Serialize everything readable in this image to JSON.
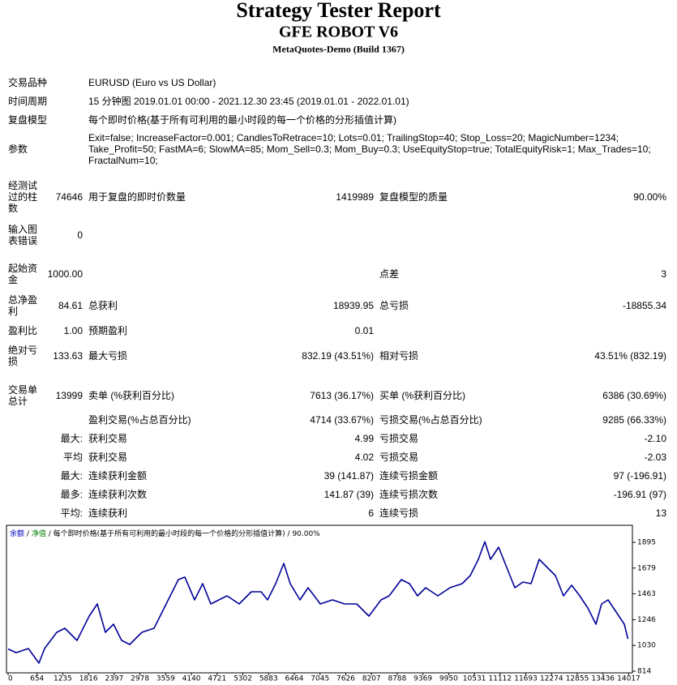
{
  "header": {
    "title": "Strategy Tester Report",
    "subtitle": "GFE ROBOT V6",
    "build": "MetaQuotes-Demo (Build 1367)"
  },
  "info": [
    {
      "label": "交易品种",
      "value": "EURUSD (Euro vs US Dollar)"
    },
    {
      "label": "时间周期",
      "value": "15 分钟图 2019.01.01 00:00 - 2021.12.30 23:45 (2019.01.01 - 2022.01.01)"
    },
    {
      "label": "复盘模型",
      "value": "每个即时价格(基于所有可利用的最小时段的每一个价格的分形插值计算)"
    },
    {
      "label": "参数",
      "value": "Exit=false; IncreaseFactor=0.001; CandlesToRetrace=10; Lots=0.01; TrailingStop=40; Stop_Loss=20; MagicNumber=1234; Take_Profit=50; FastMA=6; SlowMA=85; Mom_Sell=0.3; Mom_Buy=0.3; UseEquityStop=true; TotalEquityRisk=1; Max_Trades=10; FractalNum=10;"
    }
  ],
  "stats": [
    {
      "label": "经测试过的柱数",
      "value": "74646",
      "label2": "用于复盘的即时价数量",
      "value2": "1419989",
      "label3": "复盘模型的质量",
      "value3": "90.00%"
    },
    {
      "label": "输入图表错误",
      "value": "0"
    },
    {
      "label": "起始资金",
      "value": "1000.00",
      "label3": "点差",
      "value3": "3"
    },
    {
      "label": "总净盈利",
      "value": "84.61",
      "label2": "总获利",
      "value2": "18939.95",
      "label3": "总亏损",
      "value3": "-18855.34"
    },
    {
      "label": "盈利比",
      "value": "1.00",
      "label2": "预期盈利",
      "value2": "0.01"
    },
    {
      "label": "绝对亏损",
      "value": "133.63",
      "label2": "最大亏损",
      "value2": "832.19 (43.51%)",
      "label3": "相对亏损",
      "value3": "43.51% (832.19)"
    },
    {
      "label": "交易单总计",
      "value": "13999",
      "label2": "卖单 (%获利百分比)",
      "value2": "7613 (36.17%)",
      "label3": "买单 (%获利百分比)",
      "value3": "6386 (30.69%)"
    },
    {
      "label2": "盈利交易(%占总百分比)",
      "value2": "4714 (33.67%)",
      "label3": "亏损交易(%占总百分比)",
      "value3": "9285 (66.33%)"
    },
    {
      "prefix": "最大:",
      "label2": "获利交易",
      "value2": "4.99",
      "label3": "亏损交易",
      "value3": "-2.10"
    },
    {
      "prefix": "平均",
      "label2": "获利交易",
      "value2": "4.02",
      "label3": "亏损交易",
      "value3": "-2.03"
    },
    {
      "prefix": "最大:",
      "label2": "连续获利金额",
      "value2": "39 (141.87)",
      "label3": "连续亏损金额",
      "value3": "97 (-196.91)"
    },
    {
      "prefix": "最多:",
      "label2": "连续获利次数",
      "value2": "141.87 (39)",
      "label3": "连续亏损次数",
      "value3": "-196.91 (97)"
    },
    {
      "prefix": "平均:",
      "label2": "连续获利",
      "value2": "6",
      "label3": "连续亏损",
      "value3": "13"
    }
  ],
  "chart_data": {
    "type": "line",
    "legend_balance": "余额",
    "balance_color": "#0000c0",
    "legend_equity": "净值",
    "equity_color": "#008000",
    "separator": "/",
    "model": "每个即时价格(基于所有可利用的最小时段的每一个价格的分形插值计算)",
    "quality": "90.00%",
    "x": [
      0,
      183,
      458,
      696,
      824,
      1099,
      1282,
      1556,
      1831,
      2014,
      2197,
      2380,
      2563,
      2747,
      3021,
      3296,
      3479,
      3662,
      3845,
      3992,
      4212,
      4395,
      4578,
      4761,
      4944,
      5219,
      5493,
      5713,
      5860,
      6043,
      6226,
      6373,
      6592,
      6775,
      7050,
      7325,
      7599,
      7874,
      8149,
      8423,
      8606,
      8881,
      9064,
      9248,
      9431,
      9705,
      9980,
      10255,
      10438,
      10621,
      10767,
      10896,
      11079,
      11262,
      11445,
      11628,
      11811,
      11994,
      12177,
      12360,
      12543,
      12726,
      12909,
      13093,
      13276,
      13404,
      13550,
      13733,
      13916,
      13999
    ],
    "series": [
      {
        "name": "余额",
        "color": "#000099",
        "values": [
          1000,
          970,
          1004,
          882,
          1004,
          1140,
          1174,
          1072,
          1276,
          1378,
          1140,
          1208,
          1072,
          1038,
          1140,
          1174,
          1310,
          1446,
          1582,
          1603,
          1412,
          1548,
          1378,
          1412,
          1446,
          1378,
          1480,
          1480,
          1412,
          1548,
          1718,
          1548,
          1412,
          1514,
          1378,
          1412,
          1378,
          1378,
          1276,
          1412,
          1446,
          1582,
          1548,
          1446,
          1514,
          1446,
          1514,
          1548,
          1616,
          1752,
          1900,
          1752,
          1854,
          1684,
          1514,
          1562,
          1548,
          1752,
          1684,
          1616,
          1446,
          1535,
          1446,
          1344,
          1208,
          1378,
          1412,
          1310,
          1208,
          1085
        ]
      }
    ],
    "xlim": [
      0,
      14100
    ],
    "xticks": [
      0,
      654,
      1235,
      1816,
      2397,
      2978,
      3559,
      4140,
      4721,
      5302,
      5883,
      6464,
      7045,
      7626,
      8207,
      8788,
      9369,
      9950,
      10531,
      11112,
      11693,
      12274,
      12855,
      13436,
      14017
    ],
    "ylim": [
      814,
      2024
    ],
    "yticks": [
      814,
      1030,
      1246,
      1463,
      1679,
      1895
    ],
    "grid": false
  }
}
